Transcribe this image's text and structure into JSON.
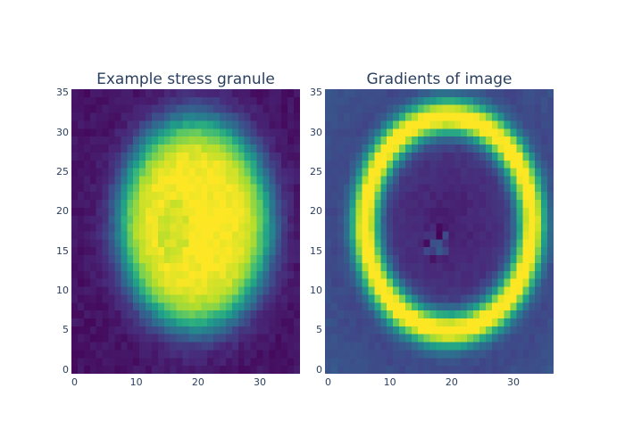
{
  "chart_data": [
    {
      "type": "heatmap",
      "title": "Example stress granule",
      "colorscale": "Viridis",
      "colors": {
        "low": "#440154",
        "high": "#fde725"
      },
      "grid_size": [
        37,
        36
      ],
      "x_ticks": [
        0,
        10,
        20,
        30
      ],
      "y_ticks": [
        0,
        5,
        10,
        15,
        20,
        25,
        30,
        35
      ],
      "xlim": [
        -0.5,
        36.5
      ],
      "ylim": [
        -0.5,
        35.5
      ],
      "content": {
        "description": "bright yellow filled blob on dark purple background",
        "center": [
          19.5,
          18.5
        ],
        "semi_axes": [
          12,
          13
        ],
        "interior_value": 1.0,
        "background_value": 0.05
      }
    },
    {
      "type": "heatmap",
      "title": "Gradients of image",
      "colorscale": "Viridis",
      "colors": {
        "low": "#440154",
        "high": "#fde725"
      },
      "grid_size": [
        37,
        36
      ],
      "x_ticks": [
        0,
        10,
        20,
        30
      ],
      "y_ticks": [
        0,
        5,
        10,
        15,
        20,
        25,
        30,
        35
      ],
      "xlim": [
        -0.5,
        36.5
      ],
      "ylim": [
        -0.5,
        35.5
      ],
      "content": {
        "description": "bright yellow ring at the blob boundary, dark interior",
        "center": [
          19.5,
          18.5
        ],
        "semi_axes": [
          13.5,
          13.5
        ],
        "ring_value": 1.0,
        "background_value": 0.15
      }
    }
  ]
}
